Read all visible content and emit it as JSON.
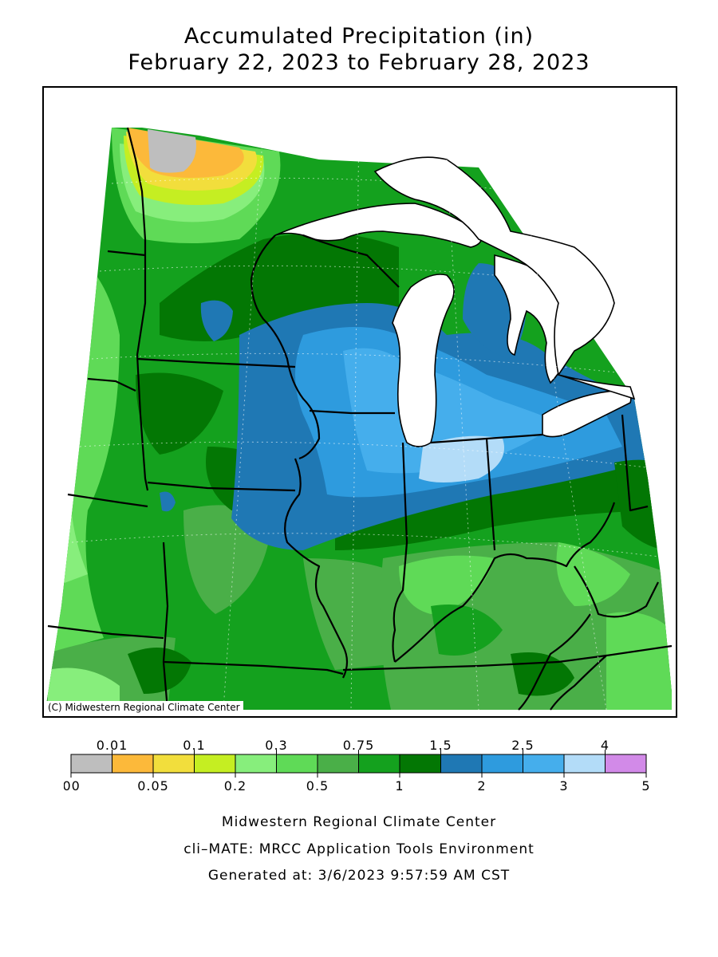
{
  "title": {
    "line1": "Accumulated Precipitation (in)",
    "line2": "February 22, 2023 to February 28, 2023"
  },
  "map": {
    "credit": "(C) Midwestern Regional Climate Center",
    "water_color": "#ffffff",
    "boundary_color": "#000000",
    "grid": "dotted lat/lon graticule"
  },
  "legend": {
    "bins": [
      {
        "range": "0.00–0.01",
        "color": "#bebebe"
      },
      {
        "range": "0.01–0.05",
        "color": "#fcb93a"
      },
      {
        "range": "0.05–0.1",
        "color": "#f2de3c"
      },
      {
        "range": "0.1–0.2",
        "color": "#c5ee22"
      },
      {
        "range": "0.2–0.3",
        "color": "#87ee7c"
      },
      {
        "range": "0.3–0.5",
        "color": "#5fda57"
      },
      {
        "range": "0.5–0.75",
        "color": "#4aaf48"
      },
      {
        "range": "0.75–1",
        "color": "#14a11e"
      },
      {
        "range": "1–1.5",
        "color": "#037704"
      },
      {
        "range": "1.5–2",
        "color": "#1f78b4"
      },
      {
        "range": "2–2.5",
        "color": "#2e9bde"
      },
      {
        "range": "2.5–3",
        "color": "#45aeec"
      },
      {
        "range": "3–4",
        "color": "#b3dcf8"
      },
      {
        "range": "4–5",
        "color": "#d28ae8"
      }
    ],
    "top_labels": [
      "0.01",
      "0.1",
      "0.3",
      "0.75",
      "1.5",
      "2.5",
      "4"
    ],
    "bottom_labels": [
      "0.00",
      "0.05",
      "0.2",
      "0.5",
      "1",
      "2",
      "3",
      "5"
    ]
  },
  "footer": {
    "line1": "Midwestern Regional Climate Center",
    "line2": "cli–MATE: MRCC Application Tools Environment",
    "line3": "Generated at: 3/6/2023 9:57:59 AM CST"
  }
}
